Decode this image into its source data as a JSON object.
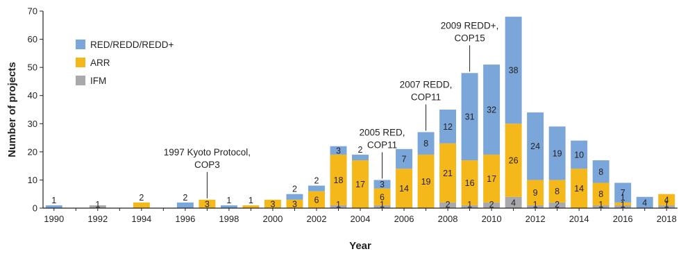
{
  "chart_data": {
    "type": "bar",
    "stacked": true,
    "xlabel": "Year",
    "ylabel": "Number of projects",
    "ylim": [
      0,
      70
    ],
    "yticks": [
      0,
      10,
      20,
      30,
      40,
      50,
      60,
      70
    ],
    "xtick_labels": [
      "1990",
      "1992",
      "1994",
      "1996",
      "1998",
      "2000",
      "2002",
      "2004",
      "2006",
      "2008",
      "2010",
      "2012",
      "2014",
      "2016",
      "2018"
    ],
    "x": [
      1990,
      1991,
      1992,
      1993,
      1994,
      1995,
      1996,
      1997,
      1998,
      1999,
      2000,
      2001,
      2002,
      2003,
      2004,
      2005,
      2006,
      2007,
      2008,
      2009,
      2010,
      2011,
      2012,
      2013,
      2014,
      2015,
      2016,
      2017,
      2018
    ],
    "series": [
      {
        "name": "IFM",
        "color": "#a7a9ac",
        "values": [
          0,
          0,
          1,
          0,
          0,
          0,
          0,
          0,
          0,
          0,
          0,
          0,
          0,
          1,
          0,
          1,
          0,
          0,
          2,
          1,
          2,
          4,
          1,
          2,
          0,
          1,
          1,
          0,
          1
        ]
      },
      {
        "name": "ARR",
        "color": "#f5b81a",
        "values": [
          0,
          0,
          0,
          0,
          2,
          0,
          0,
          3,
          0,
          1,
          3,
          3,
          6,
          18,
          17,
          6,
          14,
          19,
          21,
          16,
          17,
          26,
          9,
          8,
          14,
          8,
          1,
          0,
          4
        ]
      },
      {
        "name": "RED/REDD/REDD+",
        "color": "#7ba6d9",
        "values": [
          1,
          0,
          0,
          0,
          0,
          0,
          2,
          0,
          1,
          0,
          0,
          2,
          2,
          3,
          2,
          3,
          7,
          8,
          12,
          31,
          32,
          38,
          24,
          19,
          10,
          8,
          7,
          4,
          0
        ]
      }
    ],
    "data_labels": [
      {
        "x": 1990,
        "series": "RED/REDD/REDD+",
        "text": "1"
      },
      {
        "x": 1992,
        "series": "IFM",
        "text": "1"
      },
      {
        "x": 1994,
        "series": "ARR",
        "text": "2"
      },
      {
        "x": 1996,
        "series": "RED/REDD/REDD+",
        "text": "2"
      },
      {
        "x": 1997,
        "series": "ARR",
        "text": "3"
      },
      {
        "x": 1998,
        "series": "RED/REDD/REDD+",
        "text": "1"
      },
      {
        "x": 1999,
        "series": "ARR",
        "text": "1"
      },
      {
        "x": 2000,
        "series": "ARR",
        "text": "3"
      },
      {
        "x": 2001,
        "series": "ARR",
        "text": "3"
      },
      {
        "x": 2001,
        "series": "RED/REDD/REDD+",
        "text": "2"
      },
      {
        "x": 2002,
        "series": "ARR",
        "text": "6"
      },
      {
        "x": 2002,
        "series": "RED/REDD/REDD+",
        "text": "2"
      },
      {
        "x": 2003,
        "series": "IFM",
        "text": "1"
      },
      {
        "x": 2003,
        "series": "ARR",
        "text": "18"
      },
      {
        "x": 2003,
        "series": "RED/REDD/REDD+",
        "text": "3"
      },
      {
        "x": 2004,
        "series": "ARR",
        "text": "17"
      },
      {
        "x": 2004,
        "series": "RED/REDD/REDD+",
        "text": "2"
      },
      {
        "x": 2005,
        "series": "IFM",
        "text": "1"
      },
      {
        "x": 2005,
        "series": "ARR",
        "text": "6"
      },
      {
        "x": 2005,
        "series": "RED/REDD/REDD+",
        "text": "3"
      },
      {
        "x": 2006,
        "series": "ARR",
        "text": "14"
      },
      {
        "x": 2006,
        "series": "RED/REDD/REDD+",
        "text": "7"
      },
      {
        "x": 2007,
        "series": "ARR",
        "text": "19"
      },
      {
        "x": 2007,
        "series": "RED/REDD/REDD+",
        "text": "8"
      },
      {
        "x": 2008,
        "series": "IFM",
        "text": "2"
      },
      {
        "x": 2008,
        "series": "ARR",
        "text": "21"
      },
      {
        "x": 2008,
        "series": "RED/REDD/REDD+",
        "text": "12"
      },
      {
        "x": 2009,
        "series": "IFM",
        "text": "1"
      },
      {
        "x": 2009,
        "series": "ARR",
        "text": "16"
      },
      {
        "x": 2009,
        "series": "RED/REDD/REDD+",
        "text": "31"
      },
      {
        "x": 2010,
        "series": "IFM",
        "text": "2"
      },
      {
        "x": 2010,
        "series": "ARR",
        "text": "17"
      },
      {
        "x": 2010,
        "series": "RED/REDD/REDD+",
        "text": "32"
      },
      {
        "x": 2011,
        "series": "IFM",
        "text": "4"
      },
      {
        "x": 2011,
        "series": "ARR",
        "text": "26"
      },
      {
        "x": 2011,
        "series": "RED/REDD/REDD+",
        "text": "38"
      },
      {
        "x": 2012,
        "series": "IFM",
        "text": "1"
      },
      {
        "x": 2012,
        "series": "ARR",
        "text": "9"
      },
      {
        "x": 2012,
        "series": "RED/REDD/REDD+",
        "text": "24"
      },
      {
        "x": 2013,
        "series": "IFM",
        "text": "2"
      },
      {
        "x": 2013,
        "series": "ARR",
        "text": "8"
      },
      {
        "x": 2013,
        "series": "RED/REDD/REDD+",
        "text": "19"
      },
      {
        "x": 2014,
        "series": "ARR",
        "text": "14"
      },
      {
        "x": 2014,
        "series": "RED/REDD/REDD+",
        "text": "10"
      },
      {
        "x": 2015,
        "series": "IFM",
        "text": "1"
      },
      {
        "x": 2015,
        "series": "ARR",
        "text": "8"
      },
      {
        "x": 2015,
        "series": "RED/REDD/REDD+",
        "text": "8"
      },
      {
        "x": 2016,
        "series": "IFM",
        "text": "1"
      },
      {
        "x": 2016,
        "series": "ARR",
        "text": "1"
      },
      {
        "x": 2016,
        "series": "RED/REDD/REDD+",
        "text": "7"
      },
      {
        "x": 2017,
        "series": "RED/REDD/REDD+",
        "text": "4"
      },
      {
        "x": 2018,
        "series": "IFM",
        "text": "1"
      },
      {
        "x": 2018,
        "series": "ARR",
        "text": "4"
      }
    ],
    "legend": {
      "placement": "top-left",
      "entries": [
        {
          "label": "RED/REDD/REDD+",
          "color": "#7ba6d9"
        },
        {
          "label": "ARR",
          "color": "#f5b81a"
        },
        {
          "label": "IFM",
          "color": "#a7a9ac"
        }
      ]
    },
    "annotations": [
      {
        "x": 1997,
        "lines": [
          "1997 Kyoto Protocol,",
          "COP3"
        ]
      },
      {
        "x": 2005,
        "lines": [
          "2005 RED,",
          "COP11"
        ]
      },
      {
        "x": 2007,
        "lines": [
          "2007 REDD,",
          "COP11"
        ]
      },
      {
        "x": 2009,
        "lines": [
          "2009 REDD+,",
          "COP15"
        ]
      }
    ],
    "grid": false
  }
}
